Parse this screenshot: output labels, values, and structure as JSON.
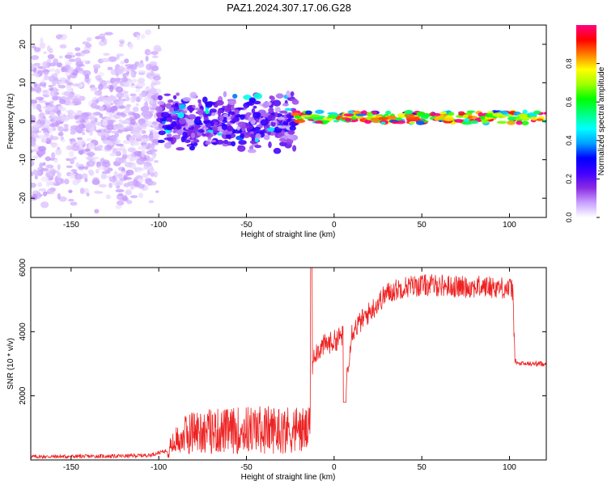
{
  "figure": {
    "title": "PAZ1.2024.307.17.06.G28"
  },
  "chart_data": [
    {
      "type": "heatmap",
      "xlabel": "Height of straight line (km)",
      "ylabel": "Frequency (Hz)",
      "xlim": [
        -173,
        121
      ],
      "ylim": [
        -25,
        25
      ],
      "xticks": [
        -150,
        -100,
        -50,
        0,
        50,
        100
      ],
      "yticks": [
        -20,
        -10,
        0,
        10,
        20
      ],
      "colorbar": {
        "label": "Normalized spectral amplitude",
        "range": [
          0,
          1
        ],
        "ticks": [
          0.0,
          0.2,
          0.4,
          0.6,
          0.8
        ],
        "colormap": [
          "#ffffff",
          "#c8a0ff",
          "#8a2be2",
          "#4000ff",
          "#0000ff",
          "#00a0ff",
          "#00ffff",
          "#00ff80",
          "#00ff00",
          "#a0ff00",
          "#ffff00",
          "#ff8000",
          "#ff0000",
          "#ff0080"
        ]
      },
      "regions": [
        {
          "x": [
            -173,
            -100
          ],
          "freq_center": 0,
          "freq_spread": 25,
          "amplitude": 0.05,
          "description_level": "noise"
        },
        {
          "x": [
            -100,
            -22
          ],
          "freq_center": 0,
          "freq_spread": 8,
          "amplitude": 0.15,
          "description_level": "scattered"
        },
        {
          "x": [
            -22,
            121
          ],
          "freq_center": 1,
          "freq_spread": 1.5,
          "amplitude": 0.7,
          "description_level": "signal"
        }
      ],
      "grid": false
    },
    {
      "type": "line",
      "xlabel": "Height of straight line (km)",
      "ylabel": "SNR (10 * v/v)",
      "xlim": [
        -173,
        121
      ],
      "ylim": [
        0,
        6000
      ],
      "xticks": [
        -150,
        -100,
        -50,
        0,
        50,
        100
      ],
      "yticks": [
        2000,
        4000,
        6000
      ],
      "color": "#ee2222",
      "envelope_x": [
        -173,
        -120,
        -105,
        -95,
        -88,
        -80,
        -70,
        -60,
        -50,
        -40,
        -30,
        -20,
        -14,
        -12,
        -10,
        -5,
        0,
        5,
        7,
        10,
        15,
        20,
        25,
        30,
        35,
        40,
        50,
        60,
        70,
        80,
        90,
        100,
        102,
        103,
        105,
        110,
        121
      ],
      "envelope_y": [
        100,
        120,
        150,
        300,
        700,
        900,
        900,
        900,
        950,
        950,
        950,
        950,
        900,
        3300,
        3400,
        3600,
        3700,
        3900,
        2500,
        4000,
        4300,
        4600,
        4900,
        5200,
        5300,
        5400,
        5450,
        5450,
        5400,
        5400,
        5400,
        5350,
        5300,
        3100,
        3000,
        3000,
        3000
      ],
      "noise_amplitude": 350,
      "grid": false
    }
  ]
}
